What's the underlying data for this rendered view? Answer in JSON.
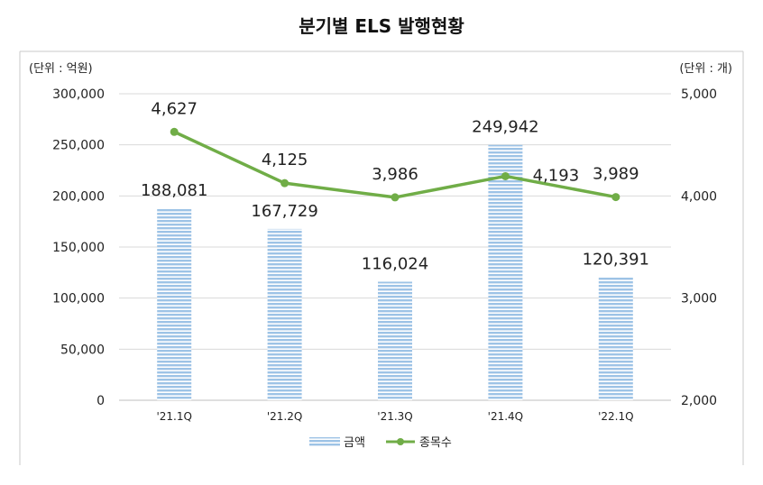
{
  "chart_data": {
    "type": "bar",
    "title": "분기별 ELS 발행현황",
    "unit_left": "(단위 : 억원)",
    "unit_right": "(단위 : 개)",
    "categories": [
      "'21.1Q",
      "'21.2Q",
      "'21.3Q",
      "'21.4Q",
      "'22.1Q"
    ],
    "series": [
      {
        "name": "금액",
        "type": "bar",
        "axis": "left",
        "values": [
          188081,
          167729,
          116024,
          249942,
          120391
        ],
        "labels": [
          "188,081",
          "167,729",
          "116,024",
          "249,942",
          "120,391"
        ],
        "color": "#9DC3E6"
      },
      {
        "name": "종목수",
        "type": "line",
        "axis": "right",
        "values": [
          4627,
          4125,
          3986,
          4193,
          3989
        ],
        "labels": [
          "4,627",
          "4,125",
          "3,986",
          "4,193",
          "3,989"
        ],
        "color": "#70AD47"
      }
    ],
    "y_left": {
      "min": 0,
      "max": 300000,
      "ticks": [
        "300,000",
        "250,000",
        "200,000",
        "150,000",
        "100,000",
        "50,000",
        "0"
      ]
    },
    "y_right": {
      "min": 2000,
      "max": 5000,
      "ticks": [
        "5,000",
        "4,000",
        "3,000",
        "2,000"
      ]
    },
    "grid": true,
    "legend_position": "bottom"
  }
}
